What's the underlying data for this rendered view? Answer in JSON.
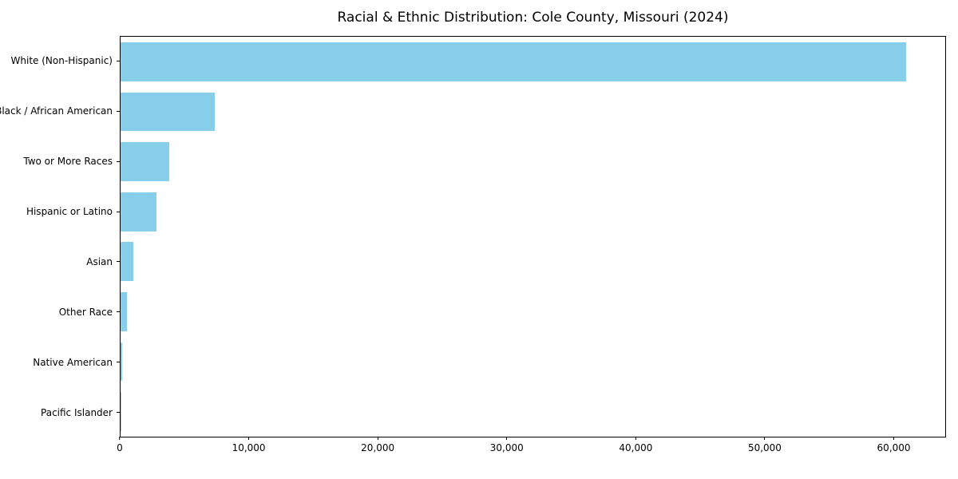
{
  "chart_data": {
    "type": "bar",
    "orientation": "horizontal",
    "title": "Racial & Ethnic Distribution: Cole County, Missouri (2024)",
    "categories": [
      "White (Non-Hispanic)",
      "Black / African American",
      "Two or More Races",
      "Hispanic or Latino",
      "Asian",
      "Other Race",
      "Native American",
      "Pacific Islander"
    ],
    "values": [
      61000,
      7300,
      3800,
      2800,
      1000,
      500,
      150,
      40
    ],
    "bar_color": "#87CEEB",
    "xlabel": "",
    "ylabel": "",
    "xlim": [
      0,
      64050
    ],
    "x_ticks": [
      {
        "value": 0,
        "label": "0"
      },
      {
        "value": 10000,
        "label": "10,000"
      },
      {
        "value": 20000,
        "label": "20,000"
      },
      {
        "value": 30000,
        "label": "30,000"
      },
      {
        "value": 40000,
        "label": "40,000"
      },
      {
        "value": 50000,
        "label": "50,000"
      },
      {
        "value": 60000,
        "label": "60,000"
      }
    ],
    "grid": false,
    "legend": false
  }
}
